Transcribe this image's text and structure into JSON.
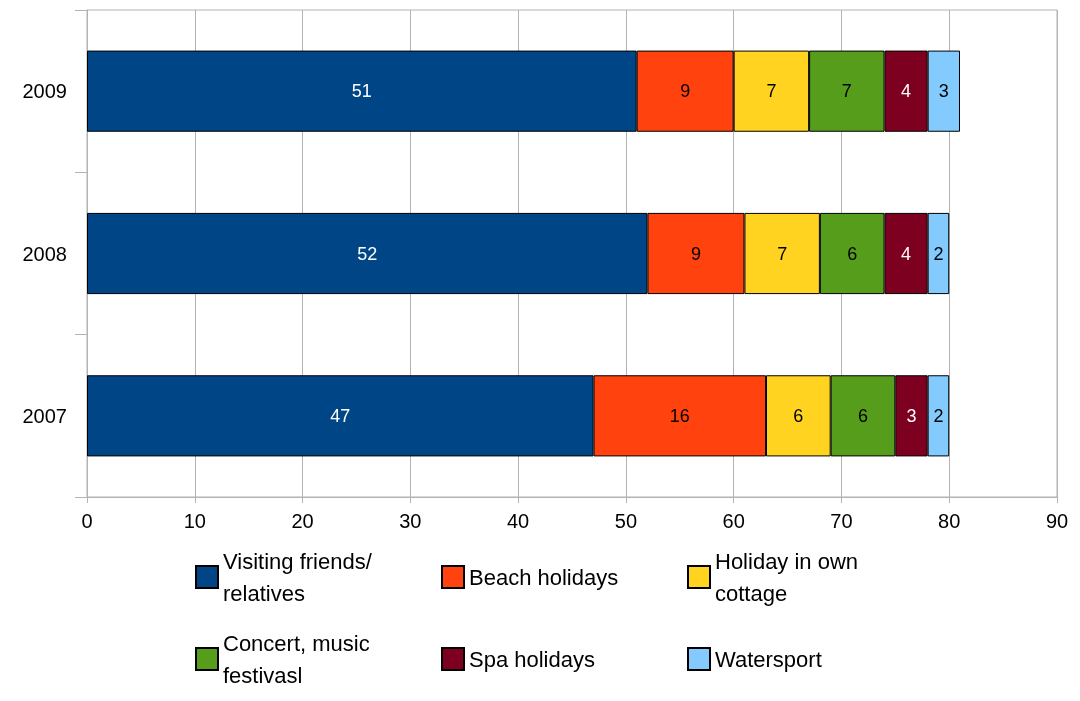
{
  "chart_data": {
    "type": "bar",
    "orientation": "horizontal",
    "stacked": true,
    "categories": [
      "2009",
      "2008",
      "2007"
    ],
    "series": [
      {
        "name": "Visiting friends/relatives",
        "color": "#004586",
        "values": [
          51,
          52,
          47
        ]
      },
      {
        "name": "Beach holidays",
        "color": "#ff420e",
        "values": [
          9,
          9,
          16
        ]
      },
      {
        "name": "Holiday in own cottage",
        "color": "#ffd320",
        "values": [
          7,
          7,
          6
        ]
      },
      {
        "name": "Concert, music festivasl",
        "color": "#579d1c",
        "values": [
          7,
          6,
          6
        ]
      },
      {
        "name": "Spa holidays",
        "color": "#7e0021",
        "values": [
          4,
          4,
          3
        ]
      },
      {
        "name": "Watersport",
        "color": "#83caff",
        "values": [
          3,
          2,
          2
        ]
      }
    ],
    "xlim": [
      0,
      90
    ],
    "xticks": [
      0,
      10,
      20,
      30,
      40,
      50,
      60,
      70,
      80,
      90
    ],
    "grid": "x",
    "legend": "bottom",
    "data_labels": true
  }
}
